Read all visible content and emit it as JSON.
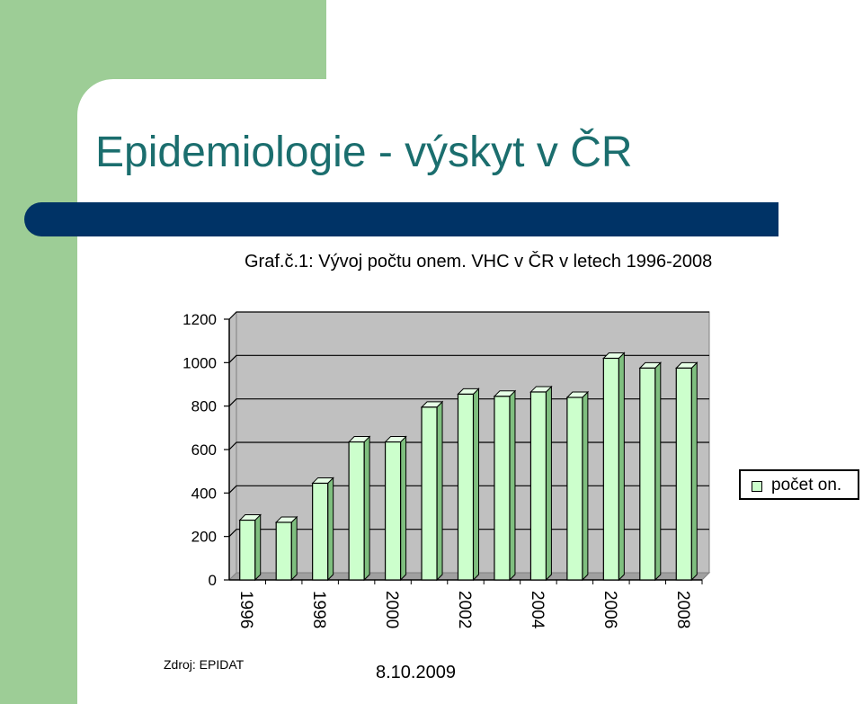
{
  "slide": {
    "title": "Epidemiologie - výskyt v ČR",
    "source": "Zdroj: EPIDAT",
    "date": "8.10.2009"
  },
  "colors": {
    "green_block": "#9dcd96",
    "title_text": "#1b6e6e",
    "title_bar": "#003366",
    "plot_background": "#c0c0c0",
    "bar_fill": "#ccffcc"
  },
  "chart_data": {
    "type": "bar",
    "title": "Graf.č.1: Vývoj počtu onem. VHC v ČR v letech 1996-2008",
    "categories": [
      "1996",
      "1997",
      "1998",
      "1999",
      "2000",
      "2001",
      "2002",
      "2003",
      "2004",
      "2005",
      "2006",
      "2007",
      "2008"
    ],
    "x_tick_labels": [
      "1996",
      "",
      "1998",
      "",
      "2000",
      "",
      "2002",
      "",
      "2004",
      "",
      "2006",
      "",
      "2008"
    ],
    "series": [
      {
        "name": "počet on.",
        "values": [
          275,
          265,
          445,
          635,
          635,
          795,
          855,
          845,
          865,
          840,
          1020,
          975,
          975
        ]
      }
    ],
    "ylim": [
      0,
      1200
    ],
    "yticks": [
      0,
      200,
      400,
      600,
      800,
      1000,
      1200
    ],
    "grid": true,
    "legend_position": "right",
    "style_3d": true
  }
}
